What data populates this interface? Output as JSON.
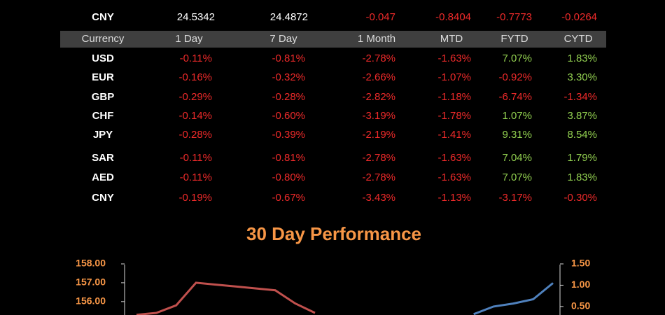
{
  "table_top": {
    "rows": [
      [
        "CNY",
        "24.5342",
        "24.4872",
        "-0.047",
        "-0.8404",
        "-0.7773",
        "-0.0264"
      ]
    ]
  },
  "table": {
    "header": [
      "Currency",
      "1 Day",
      "7 Day",
      "1 Month",
      "MTD",
      "FYTD",
      "CYTD"
    ],
    "rows": [
      [
        "USD",
        "-0.11%",
        "-0.81%",
        "-2.78%",
        "-1.63%",
        "7.07%",
        "1.83%"
      ],
      [
        "EUR",
        "-0.16%",
        "-0.32%",
        "-2.66%",
        "-1.07%",
        "-0.92%",
        "3.30%"
      ],
      [
        "GBP",
        "-0.29%",
        "-0.28%",
        "-2.82%",
        "-1.18%",
        "-6.74%",
        "-1.34%"
      ],
      [
        "CHF",
        "-0.14%",
        "-0.60%",
        "-3.19%",
        "-1.78%",
        "1.07%",
        "3.87%"
      ],
      [
        "JPY",
        "-0.28%",
        "-0.39%",
        "-2.19%",
        "-1.41%",
        "9.31%",
        "8.54%"
      ],
      [
        "SAR",
        "-0.11%",
        "-0.81%",
        "-2.78%",
        "-1.63%",
        "7.04%",
        "1.79%"
      ],
      [
        "AED",
        "-0.11%",
        "-0.80%",
        "-2.78%",
        "-1.63%",
        "7.07%",
        "1.83%"
      ],
      [
        "CNY",
        "-0.19%",
        "-0.67%",
        "-3.43%",
        "-1.13%",
        "-3.17%",
        "-0.30%"
      ]
    ]
  },
  "chart_data": {
    "type": "line",
    "title": "30 Day Performance",
    "ylim": [
      155.4,
      158
    ],
    "yticks": [
      {
        "value": 156,
        "label": "156.00"
      },
      {
        "value": 157,
        "label": "157.00"
      },
      {
        "value": 158,
        "label": "158.00"
      }
    ],
    "y2lim": [
      0.35,
      1.5
    ],
    "y2ticks": [
      {
        "value": 0.5,
        "label": "0.50"
      },
      {
        "value": 1,
        "label": "1.00"
      },
      {
        "value": 1.5,
        "label": "1.50"
      }
    ],
    "series": [
      {
        "color": "#c0504d",
        "values": [
          155.3,
          155.4,
          155.8,
          157.0,
          156.9,
          156.8,
          156.7,
          156.6,
          155.9,
          155.4,
          null,
          null,
          null,
          null,
          null,
          null,
          null,
          null,
          null,
          null,
          null,
          null
        ]
      },
      {
        "color": "#4f81bd",
        "axis": "y2",
        "values": [
          null,
          null,
          null,
          null,
          null,
          null,
          null,
          null,
          null,
          null,
          null,
          null,
          null,
          null,
          null,
          null,
          null,
          0.32,
          0.5,
          0.57,
          0.67,
          1.05
        ]
      }
    ]
  }
}
